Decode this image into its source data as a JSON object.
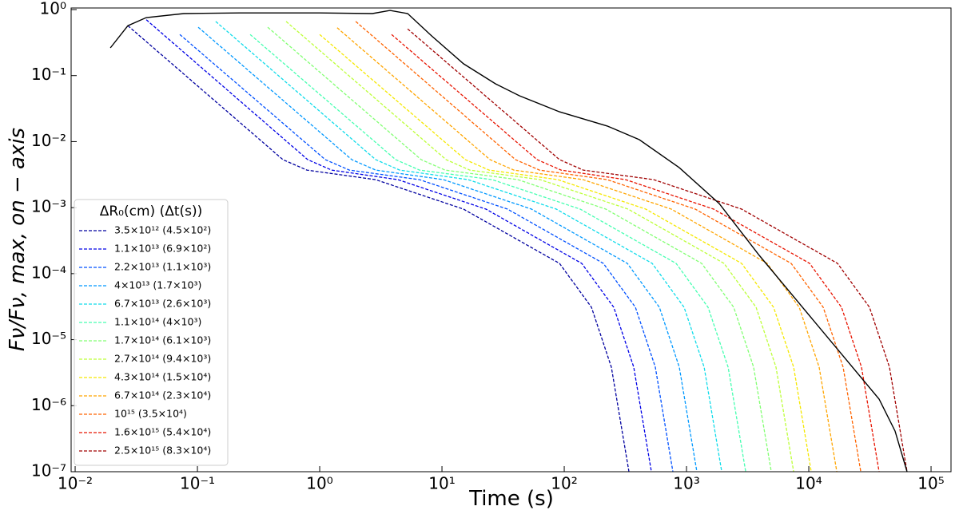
{
  "chart_data": {
    "type": "line",
    "x_label": "Time (s)",
    "y_label": "Fν/Fν, max, on − axis",
    "legend_title": "ΔR₀(cm) (Δt(s))",
    "legend": "lower-left",
    "xscale": "log",
    "yscale": "log",
    "xlim": [
      0.00927,
      145600
    ],
    "ylim": [
      1e-07,
      1.057
    ],
    "xticks": [
      {
        "value": 0.01,
        "label": "10⁻²"
      },
      {
        "value": 0.1,
        "label": "10⁻¹"
      },
      {
        "value": 1,
        "label": "10⁰"
      },
      {
        "value": 10,
        "label": "10¹"
      },
      {
        "value": 100,
        "label": "10²"
      },
      {
        "value": 1000,
        "label": "10³"
      },
      {
        "value": 10000,
        "label": "10⁴"
      },
      {
        "value": 100000,
        "label": "10⁵"
      }
    ],
    "yticks": [
      {
        "value": 1e-07,
        "label": "10⁻⁷"
      },
      {
        "value": 1e-06,
        "label": "10⁻⁶"
      },
      {
        "value": 1e-05,
        "label": "10⁻⁵"
      },
      {
        "value": 0.0001,
        "label": "10⁻⁴"
      },
      {
        "value": 0.001,
        "label": "10⁻³"
      },
      {
        "value": 0.01,
        "label": "10⁻²"
      },
      {
        "value": 0.1,
        "label": "10⁻¹"
      },
      {
        "value": 1,
        "label": "10⁰"
      }
    ],
    "series": [
      {
        "name": "3.5×10¹² (4.5×10²)",
        "color": "#00009f",
        "dashed": true,
        "x": [
          0.027,
          0.5,
          0.786,
          2.87,
          15.0,
          91.4,
          167,
          243,
          338
        ],
        "values": [
          0.57,
          0.00533,
          0.0037,
          0.00265,
          0.00095,
          0.000143,
          3.09e-05,
          3.83e-06,
          1e-07
        ]
      },
      {
        "name": "1.1×10¹³ (6.9×10²)",
        "color": "#0000e6",
        "dashed": true,
        "x": [
          0.0382,
          0.798,
          1.25,
          4.37,
          22.9,
          139,
          254,
          370,
          516
        ],
        "values": [
          0.7,
          0.00533,
          0.0037,
          0.00265,
          0.00095,
          0.000143,
          3.09e-05,
          3.83e-06,
          1e-07
        ]
      },
      {
        "name": "2.2×10¹³ (1.1×10³)",
        "color": "#0050ff",
        "dashed": true,
        "x": [
          0.0718,
          1.11,
          1.75,
          6.56,
          34.4,
          209,
          382,
          556,
          774
        ],
        "values": [
          0.42,
          0.00533,
          0.0037,
          0.00265,
          0.00095,
          0.000143,
          3.09e-05,
          3.83e-06,
          1e-07
        ]
      },
      {
        "name": "4×10¹³ (1.7×10³)",
        "color": "#0098ff",
        "dashed": true,
        "x": [
          0.1015,
          1.83,
          2.87,
          10.3,
          54.0,
          328,
          600,
          873,
          1216
        ],
        "values": [
          0.54,
          0.00533,
          0.0037,
          0.00265,
          0.00095,
          0.000143,
          3.09e-05,
          3.83e-06,
          1e-07
        ]
      },
      {
        "name": "6.7×10¹³ (2.6×10³)",
        "color": "#10dcea",
        "dashed": true,
        "x": [
          0.141,
          2.87,
          4.51,
          16.4,
          86.1,
          524,
          955,
          1393,
          1940
        ],
        "values": [
          0.66,
          0.00533,
          0.0037,
          0.00265,
          0.00095,
          0.000143,
          3.09e-05,
          3.83e-06,
          1e-07
        ]
      },
      {
        "name": "1.1×10¹⁴ (4×10³)",
        "color": "#46ffb1",
        "dashed": true,
        "x": [
          0.27,
          4.18,
          6.56,
          25.8,
          135,
          822,
          1501,
          2188,
          3048
        ],
        "values": [
          0.42,
          0.00533,
          0.0037,
          0.00265,
          0.00095,
          0.000143,
          3.09e-05,
          3.83e-06,
          1e-07
        ]
      },
      {
        "name": "1.7×10¹⁴ (6.1×10³)",
        "color": "#83ff73",
        "dashed": true,
        "x": [
          0.376,
          6.76,
          10.6,
          41.8,
          219,
          1331,
          2432,
          3540,
          4932
        ],
        "values": [
          0.54,
          0.00533,
          0.0037,
          0.00265,
          0.00095,
          0.000143,
          3.09e-05,
          3.83e-06,
          1e-07
        ]
      },
      {
        "name": "2.7×10¹⁴ (9.4×10³)",
        "color": "#bdff39",
        "dashed": true,
        "x": [
          0.531,
          10.8,
          16.9,
          63.7,
          333,
          2028,
          3707,
          5395,
          7516
        ],
        "values": [
          0.66,
          0.00533,
          0.0037,
          0.00265,
          0.00095,
          0.000143,
          3.09e-05,
          3.83e-06,
          1e-07
        ]
      },
      {
        "name": "4.3×10¹⁴ (1.5×10⁴)",
        "color": "#f5e800",
        "dashed": true,
        "x": [
          1.0,
          15.5,
          24.3,
          88.7,
          464,
          2825,
          5155,
          7516,
          10470
        ],
        "values": [
          0.42,
          0.00533,
          0.0037,
          0.00265,
          0.00095,
          0.000143,
          3.09e-05,
          3.83e-06,
          1e-07
        ]
      },
      {
        "name": "6.7×10¹⁴ (2.3×10⁴)",
        "color": "#ffa500",
        "dashed": true,
        "x": [
          1.39,
          24.7,
          38.7,
          143,
          751,
          4571,
          8350,
          12160,
          16940
        ],
        "values": [
          0.53,
          0.00533,
          0.0037,
          0.00265,
          0.00095,
          0.000143,
          3.09e-05,
          3.83e-06,
          1e-07
        ]
      },
      {
        "name": "10¹⁵ (3.5×10⁴)",
        "color": "#ff6400",
        "dashed": true,
        "x": [
          1.97,
          39.9,
          62.7,
          225,
          1180,
          7178,
          13120,
          19100,
          26610
        ],
        "values": [
          0.66,
          0.00533,
          0.0037,
          0.00265,
          0.00095,
          0.000143,
          3.09e-05,
          3.83e-06,
          1e-07
        ]
      },
      {
        "name": "1.6×10¹⁵ (5.4×10⁴)",
        "color": "#e81400",
        "dashed": true,
        "x": [
          3.87,
          59.9,
          94.2,
          318,
          1667,
          10160,
          18530,
          26980,
          37590
        ],
        "values": [
          0.42,
          0.00533,
          0.0037,
          0.00265,
          0.00095,
          0.000143,
          3.09e-05,
          3.83e-06,
          1e-07
        ]
      },
      {
        "name": "2.5×10¹⁵ (8.3×10⁴)",
        "color": "#a00000",
        "dashed": true,
        "x": [
          5.24,
          91.4,
          143,
          540,
          2825,
          17180,
          31390,
          45710,
          63680
        ],
        "values": [
          0.51,
          0.00533,
          0.0037,
          0.00265,
          0.00095,
          0.000143,
          3.09e-05,
          3.83e-06,
          1e-07
        ]
      },
      {
        "color": "#000000",
        "dashed": false,
        "x": [
          0.0194,
          0.027,
          0.0382,
          0.0774,
          0.222,
          1.0,
          2.7,
          3.76,
          5.24,
          8.22,
          15.0,
          27.4,
          43.0,
          91.4,
          225,
          411,
          873,
          1853,
          3935,
          8350,
          17720,
          37590,
          50800,
          63680
        ],
        "values": [
          0.263,
          0.57,
          0.757,
          0.87,
          0.89,
          0.89,
          0.87,
          0.97,
          0.87,
          0.4,
          0.151,
          0.075,
          0.0494,
          0.0283,
          0.0172,
          0.0107,
          0.00403,
          0.00115,
          0.000189,
          3.55e-05,
          6.68e-06,
          1.26e-06,
          4.13e-07,
          1e-07
        ]
      }
    ]
  }
}
